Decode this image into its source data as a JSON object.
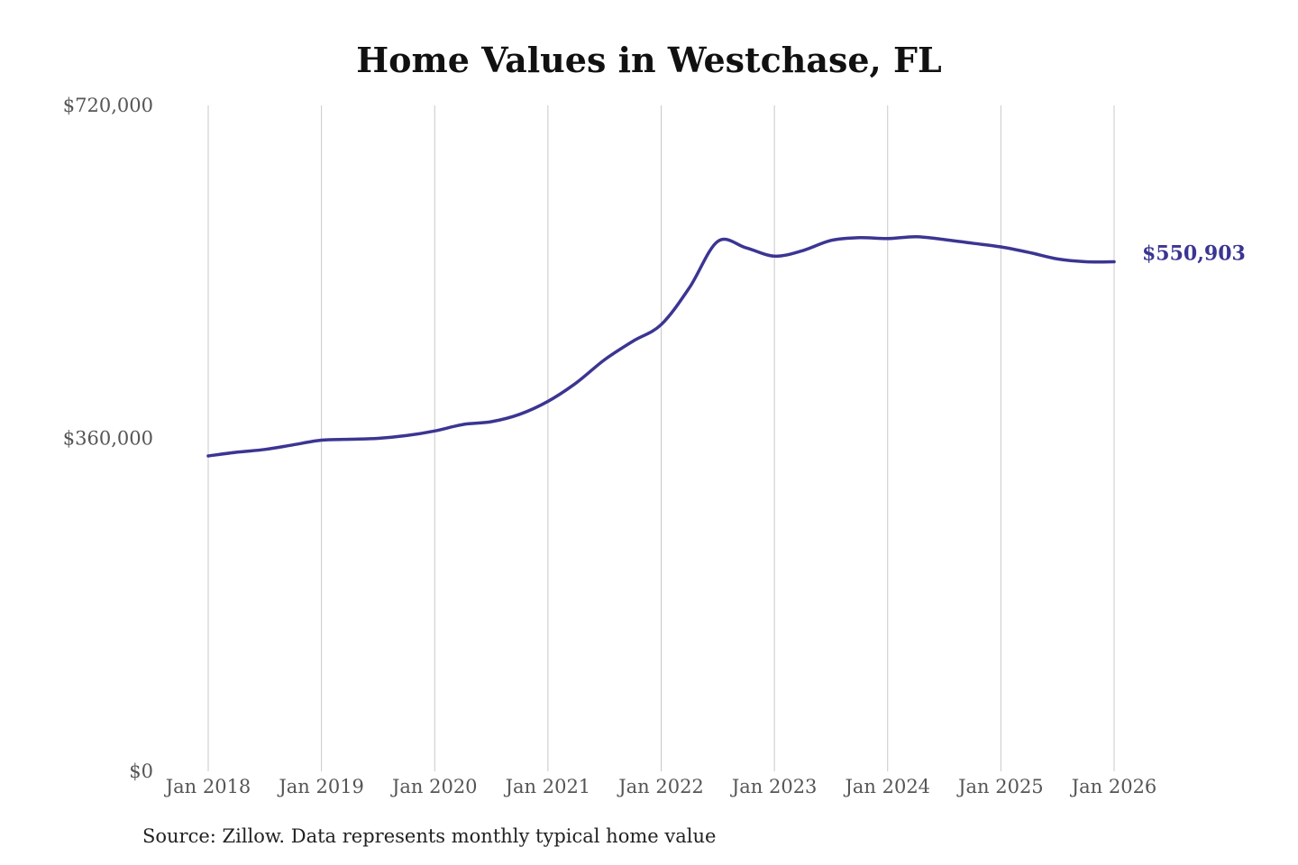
{
  "chart_data": {
    "type": "line",
    "title": "Home Values in Westchase, FL",
    "source": "Source: Zillow. Data represents monthly typical home value",
    "ylim": [
      0,
      720000
    ],
    "yticks": [
      {
        "value": 0,
        "label": "$0"
      },
      {
        "value": 360000,
        "label": "$360,000"
      },
      {
        "value": 720000,
        "label": "$720,000"
      }
    ],
    "xlim": [
      "2018-01",
      "2026-01"
    ],
    "xticks": [
      {
        "date": "2018-01",
        "label": "Jan 2018"
      },
      {
        "date": "2019-01",
        "label": "Jan 2019"
      },
      {
        "date": "2020-01",
        "label": "Jan 2020"
      },
      {
        "date": "2021-01",
        "label": "Jan 2021"
      },
      {
        "date": "2022-01",
        "label": "Jan 2022"
      },
      {
        "date": "2023-01",
        "label": "Jan 2023"
      },
      {
        "date": "2024-01",
        "label": "Jan 2024"
      },
      {
        "date": "2025-01",
        "label": "Jan 2025"
      },
      {
        "date": "2026-01",
        "label": "Jan 2026"
      }
    ],
    "grid": "vertical",
    "line_color": "#3b3592",
    "end_label": "$550,903",
    "series": [
      {
        "x": [
          "2018-01",
          "2018-04",
          "2018-07",
          "2018-10",
          "2019-01",
          "2019-04",
          "2019-07",
          "2019-10",
          "2020-01",
          "2020-04",
          "2020-07",
          "2020-10",
          "2021-01",
          "2021-04",
          "2021-07",
          "2021-10",
          "2022-01",
          "2022-04",
          "2022-07",
          "2022-10",
          "2023-01",
          "2023-04",
          "2023-07",
          "2023-10",
          "2024-01",
          "2024-04",
          "2024-07",
          "2024-10",
          "2025-01",
          "2025-04",
          "2025-07",
          "2025-10",
          "2026-01"
        ],
        "y": [
          341000,
          345000,
          348000,
          353000,
          358000,
          359000,
          360000,
          363000,
          368000,
          375000,
          378000,
          386000,
          400000,
          420000,
          445000,
          465000,
          483000,
          523000,
          573000,
          566000,
          557000,
          563000,
          574000,
          577000,
          576000,
          578000,
          575000,
          571000,
          567000,
          561000,
          554000,
          551000,
          550903
        ]
      }
    ]
  }
}
